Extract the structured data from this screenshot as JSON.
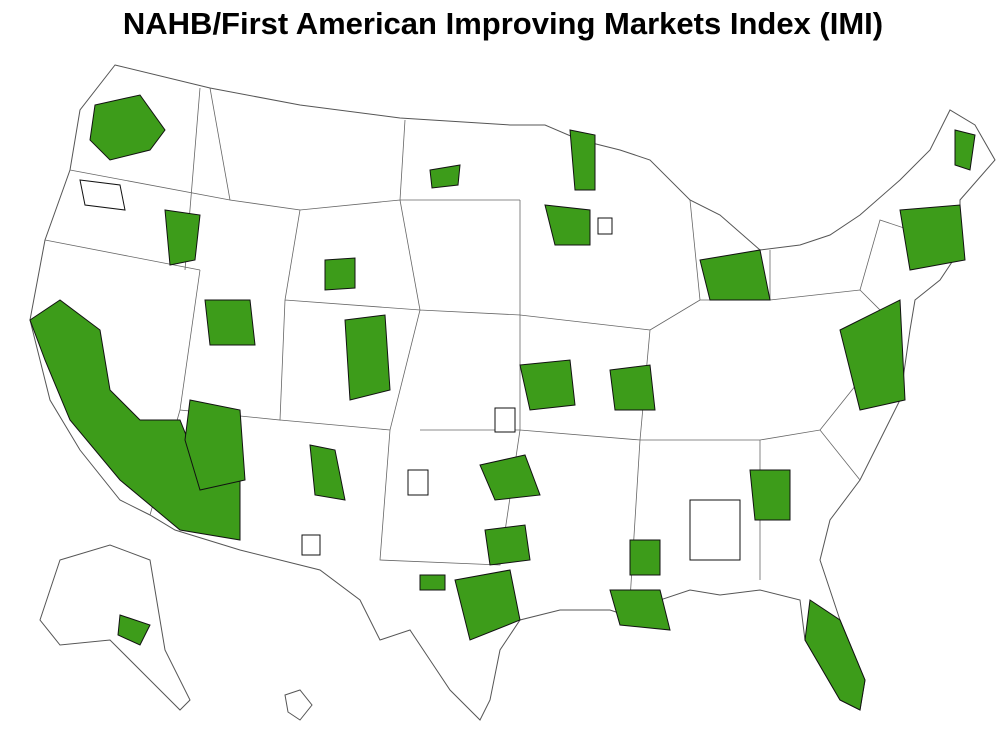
{
  "header": {
    "title": "NAHB/First American Improving Markets Index (IMI)"
  }
}
